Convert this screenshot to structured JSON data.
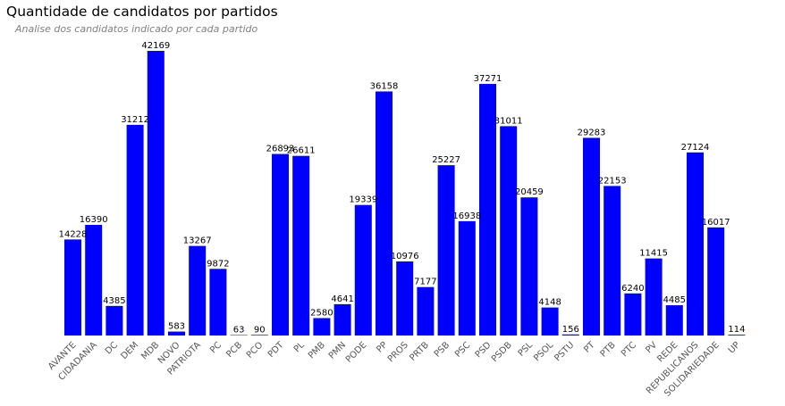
{
  "chart_data": {
    "type": "bar",
    "title": "Quantidade de candidatos por partidos",
    "subtitle": "Analise dos candidatos indicado por cada partido",
    "xlabel": "",
    "ylabel": "",
    "bar_color": "#0000ff",
    "grid": false,
    "ylim": [
      0,
      42169
    ],
    "categories": [
      "AVANTE",
      "CIDADANIA",
      "DC",
      "DEM",
      "MDB",
      "NOVO",
      "PATRIOTA",
      "PC",
      "PCB",
      "PCO",
      "PDT",
      "PL",
      "PMB",
      "PMN",
      "PODE",
      "PP",
      "PROS",
      "PRTB",
      "PSB",
      "PSC",
      "PSD",
      "PSDB",
      "PSL",
      "PSOL",
      "PSTU",
      "PT",
      "PTB",
      "PTC",
      "PV",
      "REDE",
      "REPUBLICANOS",
      "SOLIDARIEDADE",
      "UP"
    ],
    "values": [
      14228,
      16390,
      4385,
      31212,
      42169,
      583,
      13267,
      9872,
      63,
      90,
      26893,
      26611,
      2580,
      4641,
      19339,
      36158,
      10976,
      7177,
      25227,
      16938,
      37271,
      31011,
      20459,
      4148,
      156,
      29283,
      22153,
      6240,
      11415,
      4485,
      27124,
      16017,
      114
    ]
  }
}
